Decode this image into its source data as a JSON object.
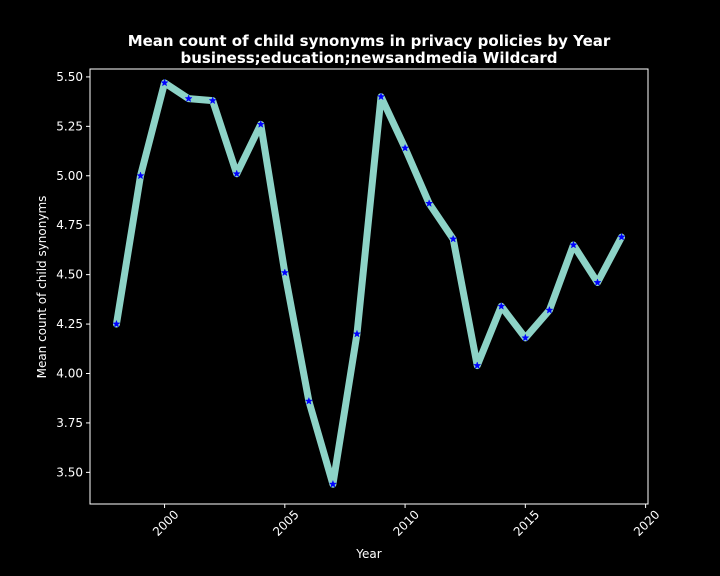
{
  "chart_data": {
    "type": "line",
    "title": "Mean count of child synonyms in privacy policies by Year",
    "subtitle": "business;education;newsandmedia Wildcard",
    "xlabel": "Year",
    "ylabel": "Mean count of child synonyms",
    "xlim": [
      1996.9,
      2020.1
    ],
    "ylim": [
      3.34,
      5.54
    ],
    "x_ticks": [
      2000,
      2005,
      2010,
      2015,
      2020
    ],
    "y_ticks": [
      3.5,
      3.75,
      4.0,
      4.25,
      4.5,
      4.75,
      5.0,
      5.25,
      5.5
    ],
    "grid": false,
    "line_color": "#8dd3c7",
    "marker_color": "#0000ff",
    "marker": "star",
    "background": "#000000",
    "series": [
      {
        "x": [
          1998,
          1999,
          2000,
          2001,
          2002,
          2003,
          2004,
          2005,
          2006,
          2007,
          2008,
          2009,
          2010,
          2011,
          2012,
          2013,
          2014,
          2015,
          2016,
          2017,
          2018,
          2019
        ],
        "values": [
          4.25,
          5.0,
          5.47,
          5.39,
          5.38,
          5.01,
          5.26,
          4.51,
          3.86,
          3.44,
          4.2,
          5.4,
          5.14,
          4.86,
          4.68,
          4.04,
          4.34,
          4.18,
          4.32,
          4.65,
          4.46,
          4.69
        ]
      }
    ]
  }
}
